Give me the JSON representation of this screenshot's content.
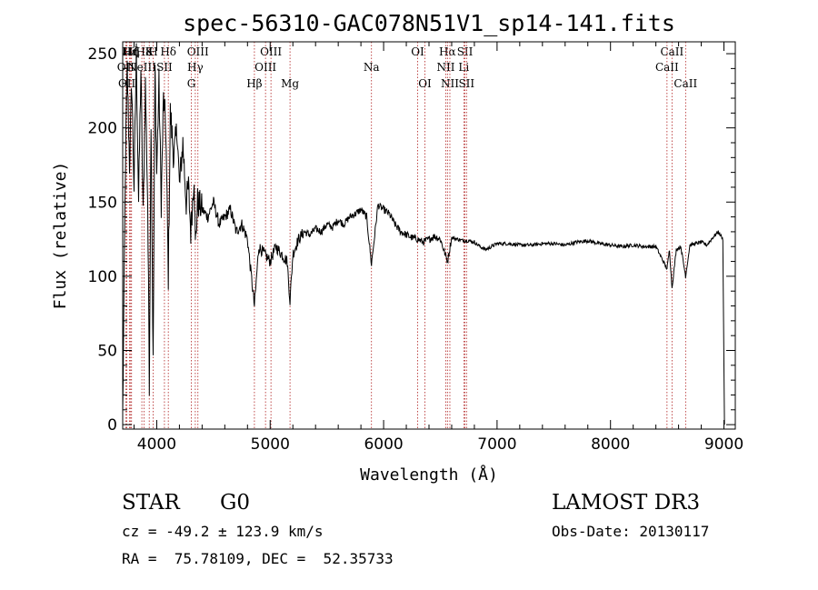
{
  "chart_data": {
    "type": "line",
    "title": "spec-56310-GAC078N51V1_sp14-141.fits",
    "xlabel": "Wavelength (Å)",
    "ylabel": "Flux (relative)",
    "xlim": [
      3700,
      9100
    ],
    "ylim": [
      -3,
      258
    ],
    "xticks": [
      4000,
      5000,
      6000,
      7000,
      8000,
      9000
    ],
    "yticks": [
      0,
      50,
      100,
      150,
      200,
      250
    ],
    "spectrum_anchors": [
      [
        3700,
        5
      ],
      [
        3712,
        90
      ],
      [
        3725,
        180
      ],
      [
        3740,
        240
      ],
      [
        3760,
        175
      ],
      [
        3780,
        230
      ],
      [
        3800,
        160
      ],
      [
        3820,
        250
      ],
      [
        3840,
        150
      ],
      [
        3860,
        240
      ],
      [
        3880,
        140
      ],
      [
        3900,
        230
      ],
      [
        3920,
        150
      ],
      [
        3935,
        30
      ],
      [
        3950,
        210
      ],
      [
        3968,
        40
      ],
      [
        3985,
        240
      ],
      [
        4000,
        170
      ],
      [
        4020,
        230
      ],
      [
        4040,
        150
      ],
      [
        4060,
        220
      ],
      [
        4080,
        200
      ],
      [
        4102,
        100
      ],
      [
        4120,
        210
      ],
      [
        4150,
        180
      ],
      [
        4180,
        200
      ],
      [
        4200,
        160
      ],
      [
        4230,
        190
      ],
      [
        4260,
        150
      ],
      [
        4280,
        160
      ],
      [
        4300,
        130
      ],
      [
        4330,
        170
      ],
      [
        4340,
        120
      ],
      [
        4360,
        150
      ],
      [
        4400,
        145
      ],
      [
        4450,
        140
      ],
      [
        4500,
        150
      ],
      [
        4550,
        135
      ],
      [
        4600,
        140
      ],
      [
        4650,
        145
      ],
      [
        4700,
        130
      ],
      [
        4750,
        135
      ],
      [
        4800,
        125
      ],
      [
        4861,
        80
      ],
      [
        4900,
        120
      ],
      [
        4950,
        115
      ],
      [
        5000,
        110
      ],
      [
        5050,
        120
      ],
      [
        5100,
        115
      ],
      [
        5150,
        110
      ],
      [
        5175,
        83
      ],
      [
        5200,
        115
      ],
      [
        5250,
        125
      ],
      [
        5300,
        130
      ],
      [
        5350,
        128
      ],
      [
        5400,
        132
      ],
      [
        5450,
        130
      ],
      [
        5500,
        135
      ],
      [
        5550,
        133
      ],
      [
        5600,
        138
      ],
      [
        5650,
        135
      ],
      [
        5700,
        140
      ],
      [
        5750,
        142
      ],
      [
        5800,
        145
      ],
      [
        5850,
        140
      ],
      [
        5893,
        108
      ],
      [
        5950,
        148
      ],
      [
        6000,
        145
      ],
      [
        6050,
        142
      ],
      [
        6100,
        135
      ],
      [
        6150,
        130
      ],
      [
        6200,
        128
      ],
      [
        6250,
        126
      ],
      [
        6300,
        125
      ],
      [
        6350,
        123
      ],
      [
        6400,
        125
      ],
      [
        6450,
        127
      ],
      [
        6500,
        125
      ],
      [
        6563,
        110
      ],
      [
        6600,
        126
      ],
      [
        6650,
        125
      ],
      [
        6700,
        124
      ],
      [
        6750,
        124
      ],
      [
        6800,
        123
      ],
      [
        6850,
        120
      ],
      [
        6900,
        118
      ],
      [
        6950,
        120
      ],
      [
        7000,
        122
      ],
      [
        7100,
        122
      ],
      [
        7200,
        121
      ],
      [
        7300,
        121
      ],
      [
        7400,
        122
      ],
      [
        7500,
        122
      ],
      [
        7600,
        121
      ],
      [
        7700,
        123
      ],
      [
        7800,
        124
      ],
      [
        7900,
        122
      ],
      [
        8000,
        121
      ],
      [
        8100,
        120
      ],
      [
        8200,
        121
      ],
      [
        8300,
        120
      ],
      [
        8400,
        120
      ],
      [
        8498,
        105
      ],
      [
        8520,
        118
      ],
      [
        8542,
        92
      ],
      [
        8580,
        118
      ],
      [
        8620,
        120
      ],
      [
        8662,
        100
      ],
      [
        8700,
        121
      ],
      [
        8750,
        122
      ],
      [
        8800,
        123
      ],
      [
        8850,
        121
      ],
      [
        8900,
        126
      ],
      [
        8950,
        130
      ],
      [
        8990,
        125
      ],
      [
        9000,
        40
      ],
      [
        9005,
        0
      ]
    ],
    "reference_lines": [
      {
        "label": "Hε",
        "x": 3760,
        "row": 1
      },
      {
        "label": "Hζ",
        "x": 3770,
        "row": 1
      },
      {
        "label": "Hη",
        "x": 3778,
        "row": 1
      },
      {
        "label": "OII",
        "x": 3727,
        "row": 2
      },
      {
        "label": "OII",
        "x": 3737,
        "row": 3
      },
      {
        "label": "H8",
        "x": 3889,
        "row": 1
      },
      {
        "label": "K",
        "x": 3934,
        "row": 1
      },
      {
        "label": "H",
        "x": 3968,
        "row": 1
      },
      {
        "label": "NeIII",
        "x": 3869,
        "row": 2
      },
      {
        "label": "SII",
        "x": 4068,
        "row": 2
      },
      {
        "label": "Hδ",
        "x": 4102,
        "row": 1
      },
      {
        "label": "OIII",
        "x": 4363,
        "row": 1
      },
      {
        "label": "Hγ",
        "x": 4340,
        "row": 2
      },
      {
        "label": "G",
        "x": 4305,
        "row": 3
      },
      {
        "label": "OIII",
        "x": 5007,
        "row": 1
      },
      {
        "label": "OIII",
        "x": 4959,
        "row": 2
      },
      {
        "label": "Hβ",
        "x": 4861,
        "row": 3
      },
      {
        "label": "Mg",
        "x": 5175,
        "row": 3
      },
      {
        "label": "Na",
        "x": 5893,
        "row": 2
      },
      {
        "label": "OI",
        "x": 6300,
        "row": 1
      },
      {
        "label": "OI",
        "x": 6364,
        "row": 3
      },
      {
        "label": "Hα",
        "x": 6563,
        "row": 1
      },
      {
        "label": "SII",
        "x": 6717,
        "row": 1
      },
      {
        "label": "NII",
        "x": 6548,
        "row": 2
      },
      {
        "label": "Li",
        "x": 6707,
        "row": 2
      },
      {
        "label": "NII",
        "x": 6584,
        "row": 3
      },
      {
        "label": "SII",
        "x": 6731,
        "row": 3
      },
      {
        "label": "CaII",
        "x": 8542,
        "row": 1
      },
      {
        "label": "CaII",
        "x": 8498,
        "row": 2
      },
      {
        "label": "CaII",
        "x": 8662,
        "row": 3
      }
    ]
  },
  "info": {
    "object_class": "STAR",
    "subclass": "G0",
    "survey": "LAMOST DR3",
    "velocity": "cz = -49.2 ± 123.9 km/s",
    "obs_date": "Obs-Date: 20130117",
    "coords": "RA =  75.78109, DEC =  52.35733"
  },
  "colors": {
    "axis": "#000000",
    "spectrum": "#000000",
    "reference_line": "#b02020"
  }
}
